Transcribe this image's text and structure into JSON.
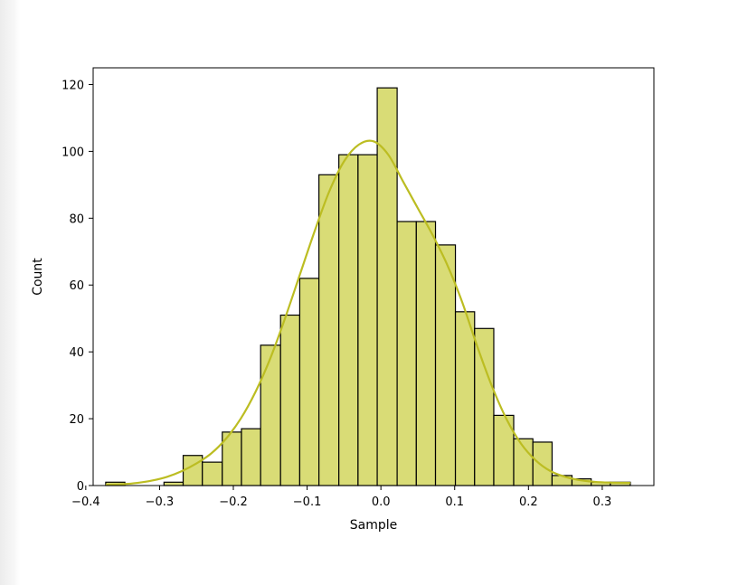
{
  "chart_data": {
    "type": "bar",
    "subtype": "histogram-with-kde",
    "title": "",
    "xlabel": "Sample",
    "ylabel": "Count",
    "xlim": [
      -0.39,
      0.37
    ],
    "ylim": [
      0,
      125
    ],
    "x_ticks": [
      -0.4,
      -0.3,
      -0.2,
      -0.1,
      0.0,
      0.1,
      0.2,
      0.3
    ],
    "x_tick_labels": [
      "−0.4",
      "−0.3",
      "−0.2",
      "−0.1",
      "0.0",
      "0.1",
      "0.2",
      "0.3"
    ],
    "y_ticks": [
      0,
      20,
      40,
      60,
      80,
      100,
      120
    ],
    "y_tick_labels": [
      "0",
      "20",
      "40",
      "60",
      "80",
      "100",
      "120"
    ],
    "grid": false,
    "colors": {
      "bar_fill": "#d9dc76",
      "bar_edge": "#000000",
      "kde": "#bcbd22"
    },
    "bins": [
      {
        "x0": -0.373,
        "x1": -0.347,
        "count": 1
      },
      {
        "x0": -0.347,
        "x1": -0.321,
        "count": 0
      },
      {
        "x0": -0.321,
        "x1": -0.294,
        "count": 0
      },
      {
        "x0": -0.294,
        "x1": -0.268,
        "count": 1
      },
      {
        "x0": -0.268,
        "x1": -0.242,
        "count": 9
      },
      {
        "x0": -0.242,
        "x1": -0.215,
        "count": 7
      },
      {
        "x0": -0.215,
        "x1": -0.189,
        "count": 16
      },
      {
        "x0": -0.189,
        "x1": -0.163,
        "count": 17
      },
      {
        "x0": -0.163,
        "x1": -0.136,
        "count": 42
      },
      {
        "x0": -0.136,
        "x1": -0.11,
        "count": 51
      },
      {
        "x0": -0.11,
        "x1": -0.084,
        "count": 62
      },
      {
        "x0": -0.084,
        "x1": -0.057,
        "count": 93
      },
      {
        "x0": -0.057,
        "x1": -0.031,
        "count": 99
      },
      {
        "x0": -0.031,
        "x1": -0.005,
        "count": 99
      },
      {
        "x0": -0.005,
        "x1": 0.022,
        "count": 119
      },
      {
        "x0": 0.022,
        "x1": 0.048,
        "count": 79
      },
      {
        "x0": 0.048,
        "x1": 0.074,
        "count": 79
      },
      {
        "x0": 0.074,
        "x1": 0.101,
        "count": 72
      },
      {
        "x0": 0.101,
        "x1": 0.127,
        "count": 52
      },
      {
        "x0": 0.127,
        "x1": 0.153,
        "count": 47
      },
      {
        "x0": 0.153,
        "x1": 0.18,
        "count": 21
      },
      {
        "x0": 0.18,
        "x1": 0.206,
        "count": 14
      },
      {
        "x0": 0.206,
        "x1": 0.232,
        "count": 13
      },
      {
        "x0": 0.232,
        "x1": 0.259,
        "count": 3
      },
      {
        "x0": 0.259,
        "x1": 0.285,
        "count": 2
      },
      {
        "x0": 0.285,
        "x1": 0.311,
        "count": 1
      },
      {
        "x0": 0.311,
        "x1": 0.338,
        "count": 1
      }
    ],
    "kde": {
      "x": [
        -0.373,
        -0.35,
        -0.33,
        -0.31,
        -0.29,
        -0.27,
        -0.25,
        -0.23,
        -0.21,
        -0.19,
        -0.17,
        -0.15,
        -0.13,
        -0.11,
        -0.09,
        -0.07,
        -0.05,
        -0.03,
        -0.01,
        0.01,
        0.03,
        0.05,
        0.07,
        0.09,
        0.11,
        0.13,
        0.15,
        0.17,
        0.19,
        0.21,
        0.23,
        0.25,
        0.27,
        0.29,
        0.31,
        0.338
      ],
      "y": [
        0.2,
        0.4,
        0.8,
        1.5,
        2.6,
        4.3,
        6.6,
        9.6,
        14,
        20,
        28,
        38,
        50,
        63,
        76,
        88,
        97,
        102,
        103,
        99,
        91,
        83,
        75,
        66,
        55,
        42,
        30,
        20,
        12.5,
        7.5,
        4.3,
        2.6,
        1.6,
        1.1,
        0.9,
        0.8
      ]
    }
  }
}
